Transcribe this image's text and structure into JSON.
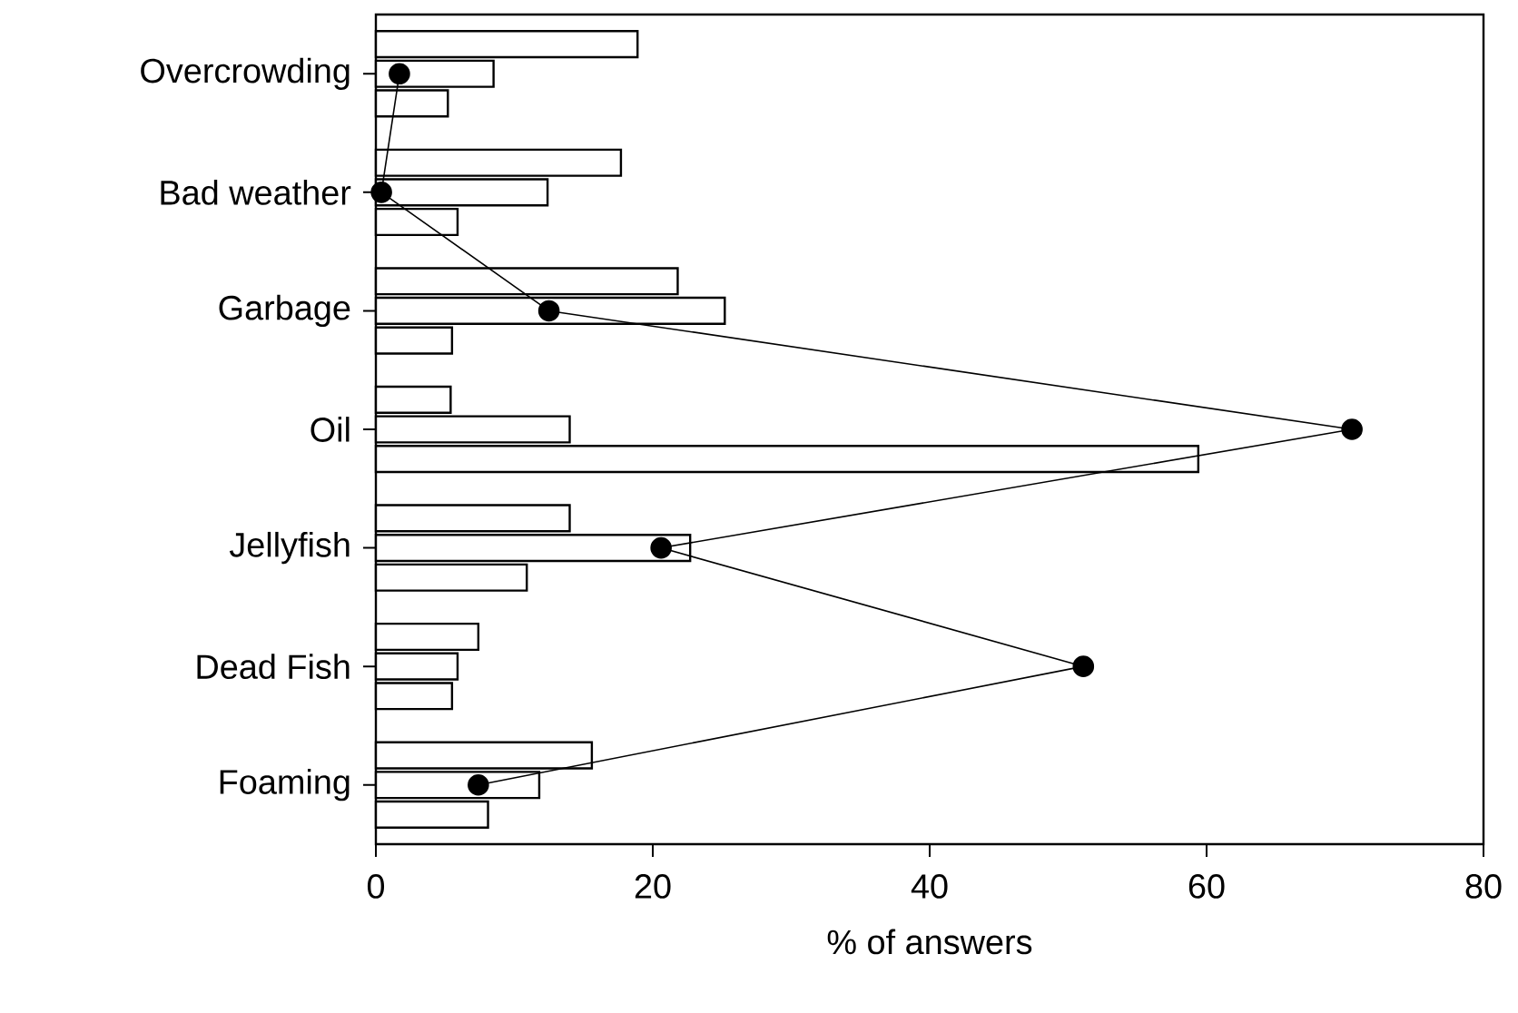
{
  "chart_data": {
    "type": "bar",
    "orientation": "horizontal",
    "xlabel": "% of answers",
    "categories": [
      "Overcrowding",
      "Bad weather",
      "Garbage",
      "Oil",
      "Jellyfish",
      "Dead Fish",
      "Foaming"
    ],
    "xlim": [
      0,
      80
    ],
    "xticks": [
      0,
      20,
      40,
      60,
      80
    ],
    "series": [
      {
        "color": "#ffffff",
        "values": [
          18.9,
          17.7,
          21.8,
          5.4,
          14.0,
          7.4,
          15.6
        ]
      },
      {
        "color": "#000000",
        "values": [
          8.5,
          12.4,
          25.2,
          14.0,
          22.7,
          5.9,
          11.8
        ]
      },
      {
        "color": "#000000",
        "values": [
          5.2,
          5.9,
          5.5,
          59.4,
          10.9,
          5.5,
          8.1
        ]
      },
      {
        "type": "line",
        "color": "#000000",
        "marker": "circle",
        "line_style": "solid",
        "values": [
          1.7,
          0.4,
          12.5,
          70.5,
          20.6,
          51.1,
          7.4
        ]
      }
    ]
  }
}
